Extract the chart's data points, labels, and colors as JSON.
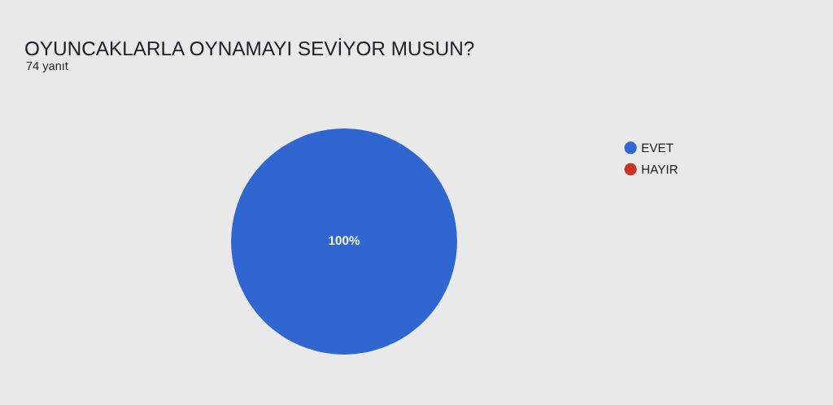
{
  "chart_data": {
    "type": "pie",
    "title": "OYUNCAKLARLA OYNAMAYI SEVİYOR MUSUN?",
    "subtitle": "74 yanıt",
    "categories": [
      "EVET",
      "HAYIR"
    ],
    "values": [
      100,
      0
    ],
    "colors": [
      "#2f66d0",
      "#cc3322"
    ],
    "value_labels": [
      "100%",
      null
    ],
    "legend": "top right"
  }
}
